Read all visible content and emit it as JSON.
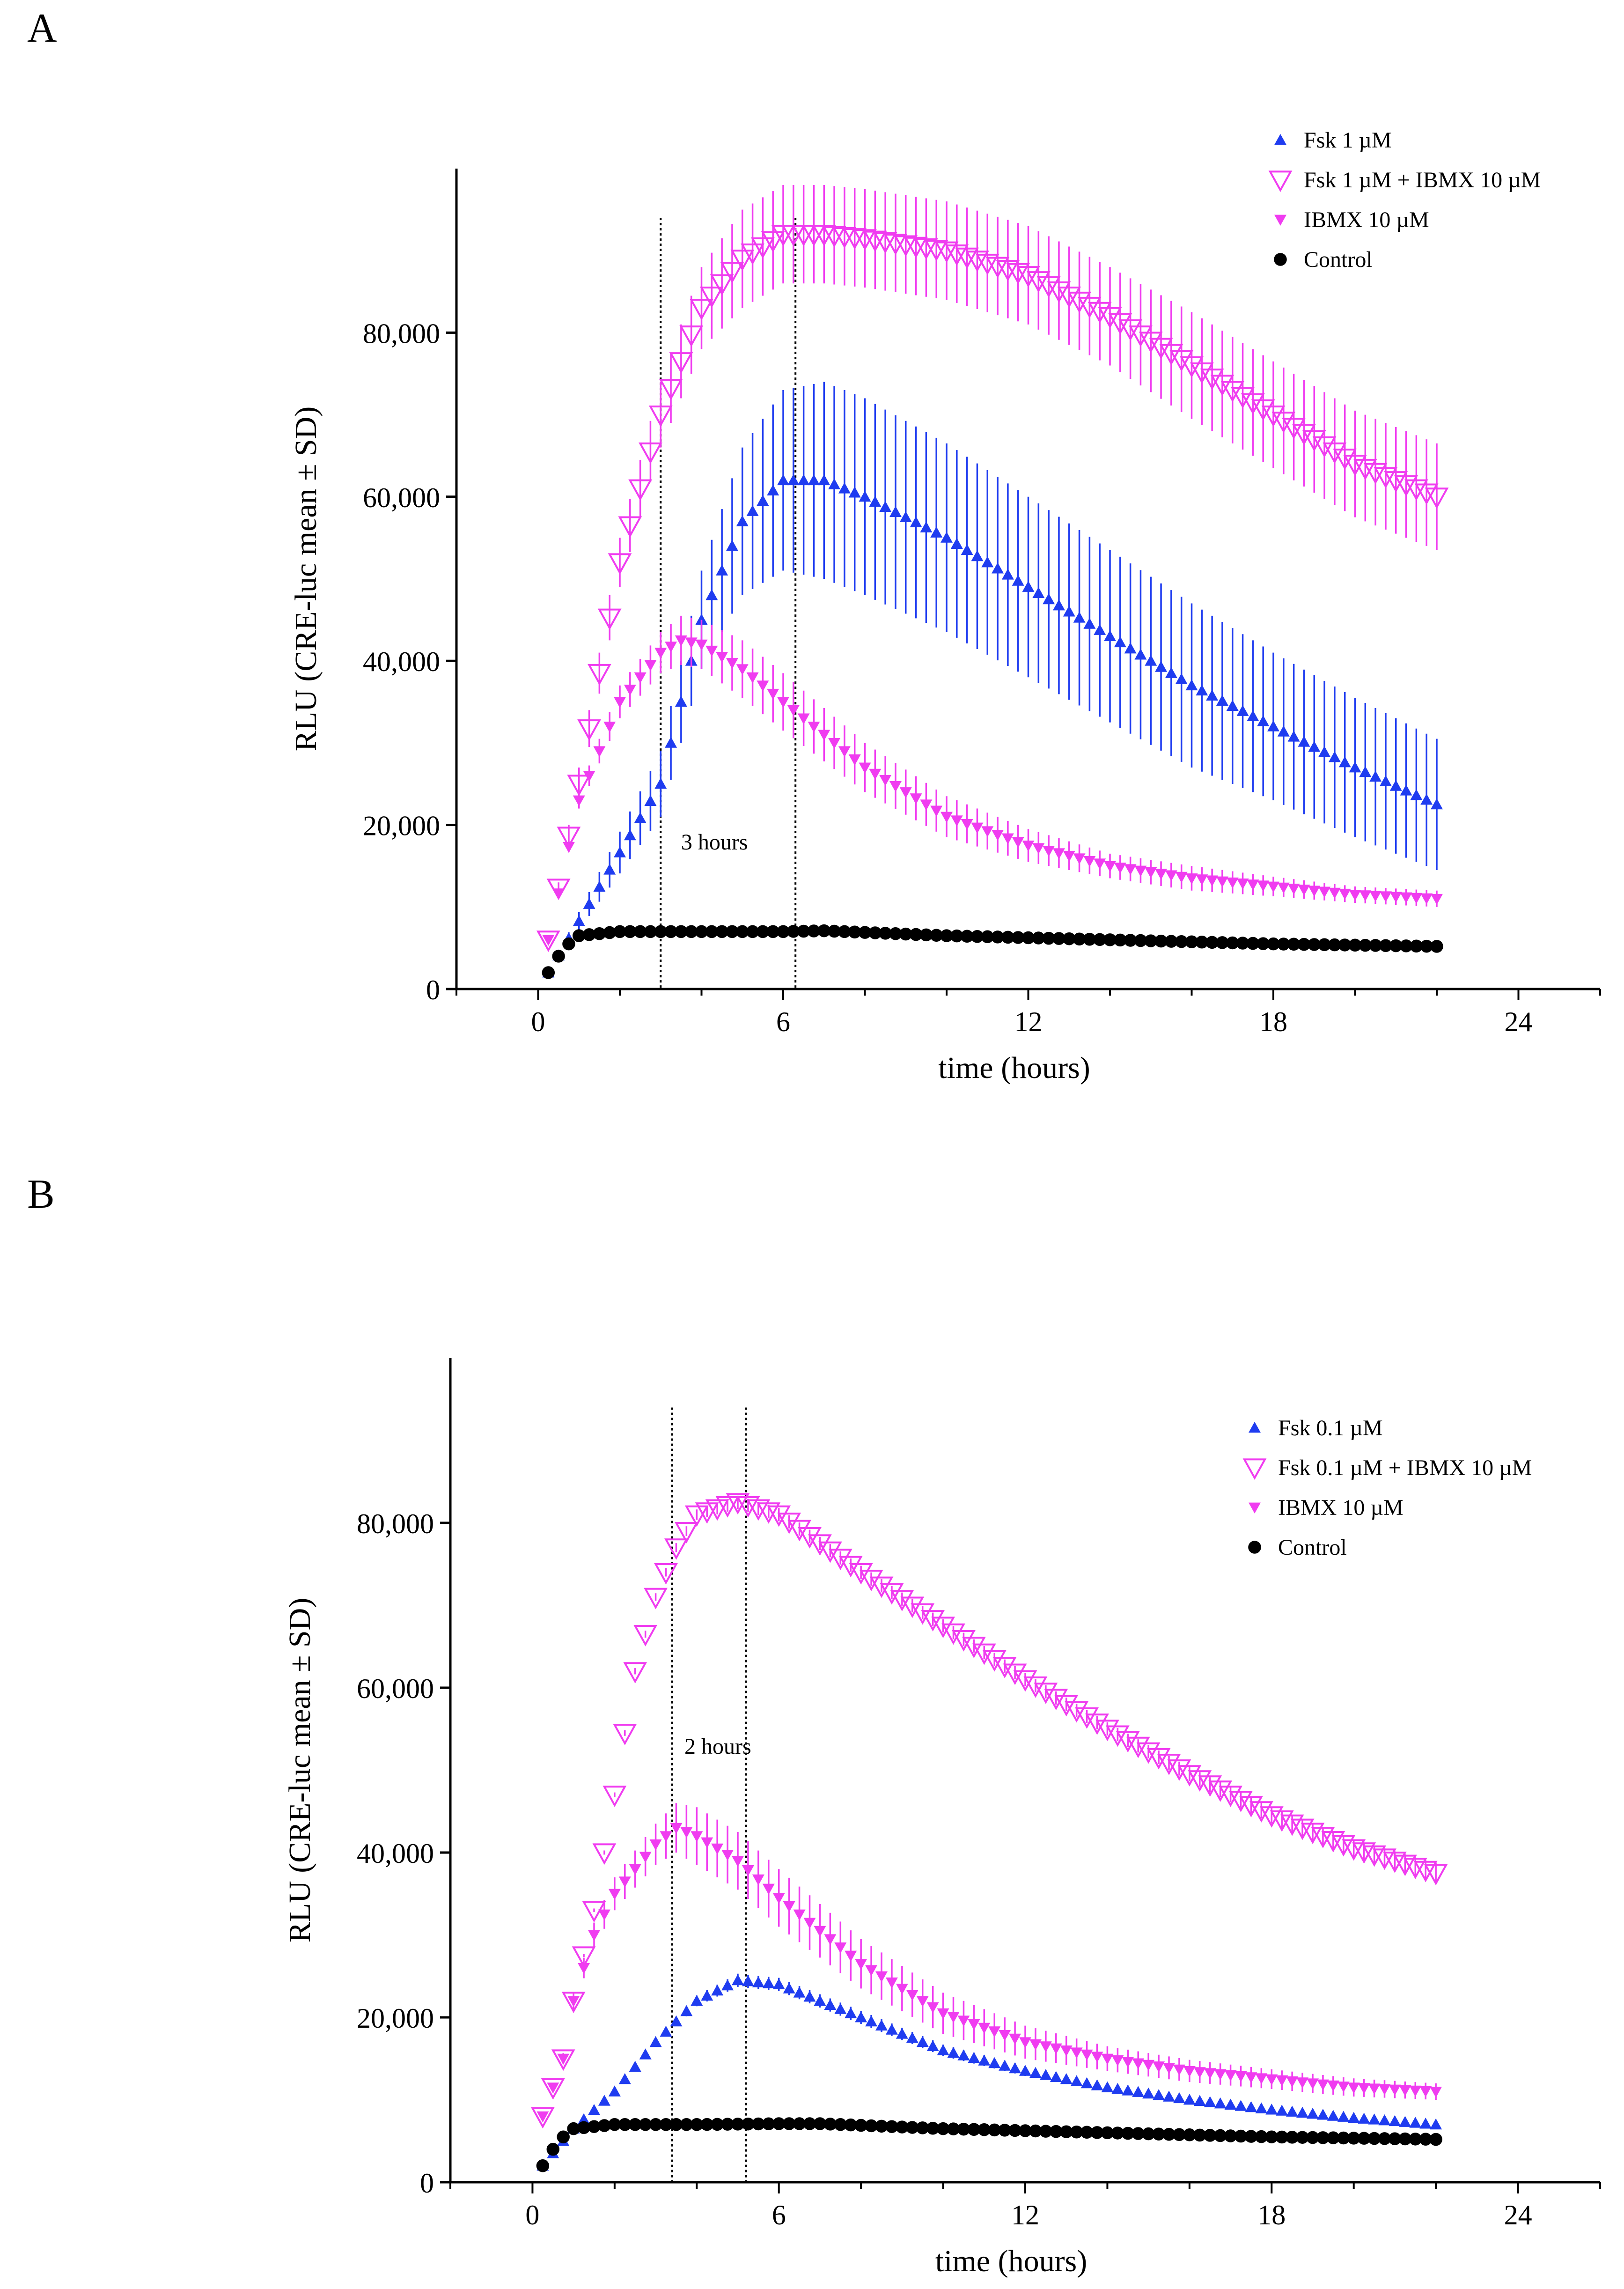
{
  "chart_data": [
    {
      "panel_label": "A",
      "type": "scatter",
      "xlabel": "time (hours)",
      "ylabel": "RLU (CRE-luc mean ± SD)",
      "xlim": [
        -2,
        26
      ],
      "ylim": [
        0,
        100000
      ],
      "xticks": [
        0,
        6,
        12,
        18,
        24
      ],
      "yticks": [
        0,
        20000,
        40000,
        60000,
        80000
      ],
      "ytick_labels": [
        "0",
        "20,000",
        "40,000",
        "60,000",
        "80,000"
      ],
      "legend_position": "top-right",
      "vlines": [
        3.0,
        6.3
      ],
      "annotation": {
        "text": "3 hours",
        "x": 3.5,
        "y": 17000
      },
      "series": [
        {
          "name": "Fsk 1 µM",
          "marker": "triangle-up",
          "color": "#1f3cf0",
          "points": [
            [
              0.25,
              2000
            ],
            [
              3,
              25000
            ],
            [
              4,
              45000
            ],
            [
              5,
              57000
            ],
            [
              6,
              62000
            ],
            [
              7,
              62000
            ],
            [
              8,
              60000
            ],
            [
              10,
              55000
            ],
            [
              12,
              49000
            ],
            [
              14,
              43000
            ],
            [
              16,
              37000
            ],
            [
              18,
              32000
            ],
            [
              20,
              27000
            ],
            [
              22,
              22500
            ]
          ],
          "sd": [
            [
              0.25,
              0
            ],
            [
              3,
              4000
            ],
            [
              4,
              6000
            ],
            [
              5,
              9000
            ],
            [
              6,
              11000
            ],
            [
              7,
              12000
            ],
            [
              8,
              12000
            ],
            [
              10,
              11500
            ],
            [
              12,
              11000
            ],
            [
              14,
              10500
            ],
            [
              16,
              10000
            ],
            [
              18,
              9000
            ],
            [
              20,
              8500
            ],
            [
              22,
              8000
            ]
          ]
        },
        {
          "name": "Fsk 1 µM + IBMX 10 µM",
          "marker": "triangle-down-open",
          "color": "#f03cf0",
          "points": [
            [
              0.25,
              6000
            ],
            [
              1,
              25000
            ],
            [
              2,
              52000
            ],
            [
              3,
              70000
            ],
            [
              4,
              83000
            ],
            [
              5,
              89000
            ],
            [
              6,
              92000
            ],
            [
              7,
              92000
            ],
            [
              8,
              91500
            ],
            [
              10,
              90000
            ],
            [
              12,
              87000
            ],
            [
              14,
              82000
            ],
            [
              16,
              76000
            ],
            [
              18,
              70000
            ],
            [
              20,
              64000
            ],
            [
              22,
              60000
            ]
          ],
          "sd": [
            [
              0.25,
              0
            ],
            [
              1,
              2000
            ],
            [
              2,
              3000
            ],
            [
              3,
              4000
            ],
            [
              4,
              5000
            ],
            [
              5,
              6000
            ],
            [
              6,
              6000
            ],
            [
              7,
              6000
            ],
            [
              8,
              6000
            ],
            [
              10,
              6000
            ],
            [
              12,
              6000
            ],
            [
              14,
              6000
            ],
            [
              16,
              6500
            ],
            [
              18,
              6500
            ],
            [
              20,
              6500
            ],
            [
              22,
              6500
            ]
          ]
        },
        {
          "name": "IBMX 10 µM",
          "marker": "triangle-down",
          "color": "#f03cf0",
          "points": [
            [
              0.25,
              6000
            ],
            [
              1,
              23000
            ],
            [
              2,
              35000
            ],
            [
              3,
              41000
            ],
            [
              3.5,
              42500
            ],
            [
              4,
              42000
            ],
            [
              5,
              39000
            ],
            [
              6,
              35000
            ],
            [
              8,
              27000
            ],
            [
              10,
              21000
            ],
            [
              12,
              17500
            ],
            [
              14,
              15000
            ],
            [
              16,
              13500
            ],
            [
              18,
              12500
            ],
            [
              20,
              11500
            ],
            [
              22,
              11000
            ]
          ],
          "sd": [
            [
              0.25,
              0
            ],
            [
              1,
              1000
            ],
            [
              2,
              2000
            ],
            [
              3,
              2500
            ],
            [
              3.5,
              3000
            ],
            [
              4,
              3000
            ],
            [
              5,
              3500
            ],
            [
              6,
              3500
            ],
            [
              8,
              3000
            ],
            [
              10,
              2500
            ],
            [
              12,
              2000
            ],
            [
              14,
              1500
            ],
            [
              16,
              1500
            ],
            [
              18,
              1200
            ],
            [
              20,
              1000
            ],
            [
              22,
              1000
            ]
          ]
        },
        {
          "name": "Control",
          "marker": "circle",
          "color": "#000000",
          "points": [
            [
              0.25,
              2000
            ],
            [
              0.5,
              4000
            ],
            [
              0.75,
              5500
            ],
            [
              1,
              6500
            ],
            [
              2,
              7000
            ],
            [
              4,
              7000
            ],
            [
              6,
              7000
            ],
            [
              7,
              7100
            ],
            [
              10,
              6500
            ],
            [
              14,
              6000
            ],
            [
              18,
              5500
            ],
            [
              22,
              5200
            ]
          ],
          "sd": [
            [
              0.25,
              0
            ],
            [
              22,
              0
            ]
          ]
        }
      ]
    },
    {
      "panel_label": "B",
      "type": "scatter",
      "xlabel": "time (hours)",
      "ylabel": "RLU (CRE-luc mean ± SD)",
      "xlim": [
        -2,
        26
      ],
      "ylim": [
        0,
        100000
      ],
      "xticks": [
        0,
        6,
        12,
        18,
        24
      ],
      "yticks": [
        0,
        20000,
        40000,
        60000,
        80000
      ],
      "ytick_labels": [
        "0",
        "20,000",
        "40,000",
        "60,000",
        "80,000"
      ],
      "legend_position": "top-right",
      "vlines": [
        3.4,
        5.2
      ],
      "annotation": {
        "text": "2 hours",
        "x": 3.7,
        "y": 52000
      },
      "series": [
        {
          "name": "Fsk 0.1 µM",
          "marker": "triangle-up",
          "color": "#1f3cf0",
          "points": [
            [
              0.25,
              2000
            ],
            [
              1,
              6500
            ],
            [
              2,
              11000
            ],
            [
              3,
              17000
            ],
            [
              4,
              22000
            ],
            [
              5,
              24500
            ],
            [
              6,
              24000
            ],
            [
              8,
              20000
            ],
            [
              10,
              16000
            ],
            [
              12,
              13500
            ],
            [
              14,
              11500
            ],
            [
              16,
              10000
            ],
            [
              18,
              8800
            ],
            [
              20,
              7800
            ],
            [
              22,
              7000
            ]
          ],
          "sd": [
            [
              0.25,
              0
            ],
            [
              3,
              500
            ],
            [
              5,
              800
            ],
            [
              8,
              800
            ],
            [
              12,
              600
            ],
            [
              16,
              500
            ],
            [
              22,
              500
            ]
          ]
        },
        {
          "name": "Fsk 0.1 µM + IBMX 10 µM",
          "marker": "triangle-down-open",
          "color": "#f03cf0",
          "points": [
            [
              0.25,
              8000
            ],
            [
              0.75,
              15000
            ],
            [
              1,
              22000
            ],
            [
              1.5,
              33000
            ],
            [
              2,
              47000
            ],
            [
              2.5,
              62000
            ],
            [
              3,
              71000
            ],
            [
              3.5,
              77000
            ],
            [
              4,
              81000
            ],
            [
              5,
              82500
            ],
            [
              6,
              81000
            ],
            [
              7,
              77500
            ],
            [
              8,
              74000
            ],
            [
              10,
              67500
            ],
            [
              12,
              61000
            ],
            [
              14,
              55000
            ],
            [
              16,
              49500
            ],
            [
              18,
              44500
            ],
            [
              20,
              40500
            ],
            [
              22,
              37500
            ]
          ],
          "sd": [
            [
              0.25,
              0
            ],
            [
              5,
              800
            ],
            [
              10,
              800
            ],
            [
              15,
              800
            ],
            [
              22,
              1200
            ]
          ]
        },
        {
          "name": "IBMX 10 µM",
          "marker": "triangle-down",
          "color": "#f03cf0",
          "points": [
            [
              0.25,
              8000
            ],
            [
              0.75,
              15000
            ],
            [
              1,
              22000
            ],
            [
              1.5,
              30000
            ],
            [
              2,
              35000
            ],
            [
              3,
              41000
            ],
            [
              3.5,
              43000
            ],
            [
              4,
              42000
            ],
            [
              5,
              39000
            ],
            [
              6,
              34500
            ],
            [
              8,
              26500
            ],
            [
              10,
              20500
            ],
            [
              12,
              17000
            ],
            [
              14,
              15000
            ],
            [
              16,
              13500
            ],
            [
              18,
              12500
            ],
            [
              20,
              11500
            ],
            [
              22,
              11000
            ]
          ],
          "sd": [
            [
              0.25,
              0
            ],
            [
              1,
              1000
            ],
            [
              2,
              2000
            ],
            [
              3,
              2500
            ],
            [
              3.5,
              3000
            ],
            [
              4,
              3500
            ],
            [
              5,
              3500
            ],
            [
              6,
              3500
            ],
            [
              8,
              3000
            ],
            [
              10,
              2500
            ],
            [
              12,
              2000
            ],
            [
              14,
              1500
            ],
            [
              18,
              1200
            ],
            [
              22,
              1000
            ]
          ]
        },
        {
          "name": "Control",
          "marker": "circle",
          "color": "#000000",
          "points": [
            [
              0.25,
              2000
            ],
            [
              0.5,
              4000
            ],
            [
              0.75,
              5500
            ],
            [
              1,
              6500
            ],
            [
              2,
              7000
            ],
            [
              4,
              7000
            ],
            [
              6,
              7100
            ],
            [
              7,
              7100
            ],
            [
              10,
              6500
            ],
            [
              14,
              6000
            ],
            [
              18,
              5500
            ],
            [
              22,
              5200
            ]
          ],
          "sd": [
            [
              0.25,
              0
            ],
            [
              22,
              0
            ]
          ]
        }
      ]
    }
  ]
}
